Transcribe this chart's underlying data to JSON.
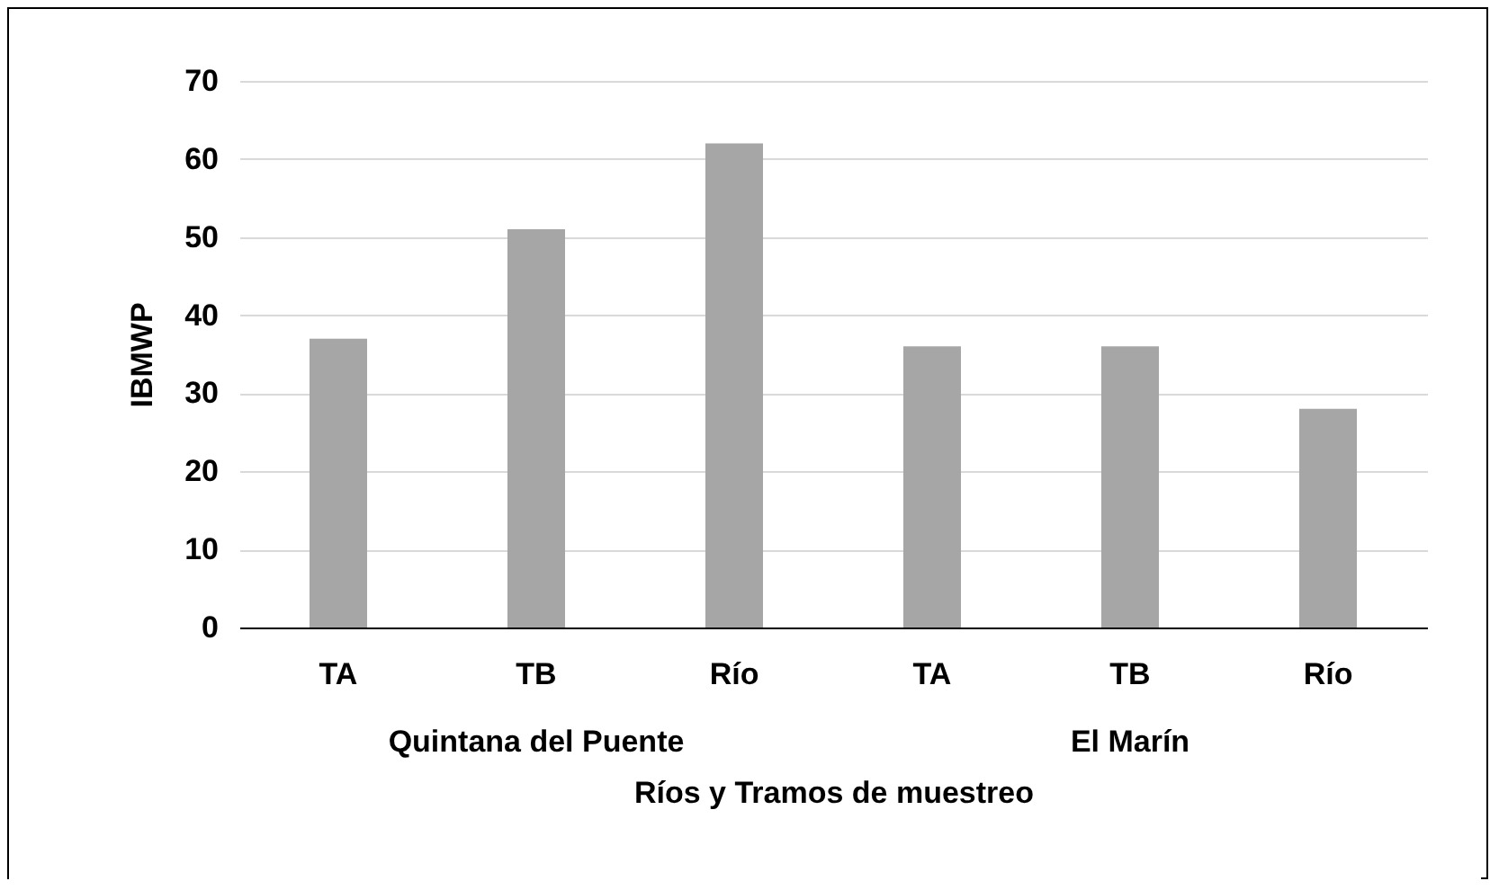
{
  "chart_data": {
    "type": "bar",
    "ylabel": "IBMWP",
    "xlabel": "Ríos y Tramos de muestreo",
    "categories": [
      "TA",
      "TB",
      "Río",
      "TA",
      "TB",
      "Río"
    ],
    "values": [
      37,
      51,
      62,
      36,
      36,
      28
    ],
    "color": "#a6a6a6",
    "ylim": [
      0,
      70
    ],
    "yticks": [
      0,
      10,
      20,
      30,
      40,
      50,
      60,
      70
    ],
    "grid": "y",
    "annotations": [
      "Quintana del Puente",
      "El Marín"
    ]
  }
}
